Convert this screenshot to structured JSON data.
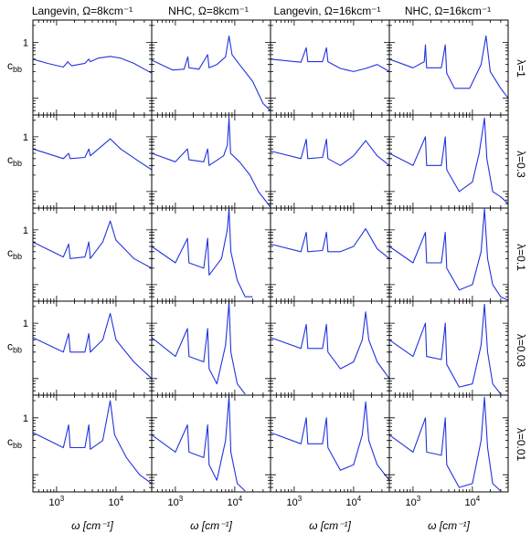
{
  "chart_data": {
    "type": "line",
    "layout": "5x4 grid of panels sharing axes",
    "x_scale": "log",
    "y_scale": "log",
    "xlim": [
      400,
      40000
    ],
    "ylim": [
      0.05,
      2.5
    ],
    "xlabel": "ω [cm⁻¹]",
    "ylabel": "c_bb",
    "ylabel_main": "c",
    "ylabel_sub": "bb",
    "x_ticks": [
      {
        "value": 1000,
        "base": "10",
        "exp": "3"
      },
      {
        "value": 10000,
        "base": "10",
        "exp": "4"
      }
    ],
    "y_ticks": [
      {
        "value": 1,
        "label": "1"
      }
    ],
    "column_titles": [
      "Langevin, Ω=8kcm⁻¹",
      "NHC, Ω=8kcm⁻¹",
      "Langevin, Ω=16kcm⁻¹",
      "NHC, Ω=16kcm⁻¹"
    ],
    "row_labels": [
      "λ=1",
      "λ=0.3",
      "λ=0.1",
      "λ=0.03",
      "λ=0.01"
    ],
    "line_color": "#2233dd",
    "panels": [
      {
        "row": 0,
        "col": 0,
        "points": [
          [
            400,
            0.5
          ],
          [
            700,
            0.42
          ],
          [
            1300,
            0.36
          ],
          [
            1550,
            0.45
          ],
          [
            1620,
            0.42
          ],
          [
            1800,
            0.38
          ],
          [
            3000,
            0.42
          ],
          [
            3500,
            0.5
          ],
          [
            3700,
            0.45
          ],
          [
            5000,
            0.52
          ],
          [
            8000,
            0.56
          ],
          [
            12000,
            0.52
          ],
          [
            20000,
            0.42
          ],
          [
            40000,
            0.28
          ]
        ]
      },
      {
        "row": 0,
        "col": 1,
        "points": [
          [
            400,
            0.48
          ],
          [
            900,
            0.32
          ],
          [
            1400,
            0.33
          ],
          [
            1620,
            0.55
          ],
          [
            1700,
            0.35
          ],
          [
            2500,
            0.33
          ],
          [
            3500,
            0.6
          ],
          [
            3700,
            0.35
          ],
          [
            5000,
            0.4
          ],
          [
            7000,
            0.55
          ],
          [
            8000,
            1.3
          ],
          [
            9000,
            0.6
          ],
          [
            12000,
            0.4
          ],
          [
            20000,
            0.2
          ],
          [
            30000,
            0.08
          ],
          [
            40000,
            0.06
          ]
        ]
      },
      {
        "row": 0,
        "col": 2,
        "points": [
          [
            400,
            0.5
          ],
          [
            1300,
            0.44
          ],
          [
            1600,
            0.8
          ],
          [
            1700,
            0.45
          ],
          [
            3000,
            0.45
          ],
          [
            3500,
            0.8
          ],
          [
            3700,
            0.45
          ],
          [
            6000,
            0.34
          ],
          [
            10000,
            0.3
          ],
          [
            16000,
            0.34
          ],
          [
            25000,
            0.4
          ],
          [
            40000,
            0.3
          ]
        ]
      },
      {
        "row": 0,
        "col": 3,
        "points": [
          [
            400,
            0.5
          ],
          [
            1000,
            0.35
          ],
          [
            1550,
            0.45
          ],
          [
            1620,
            0.9
          ],
          [
            1700,
            0.35
          ],
          [
            3000,
            0.35
          ],
          [
            3500,
            0.9
          ],
          [
            3700,
            0.28
          ],
          [
            5000,
            0.15
          ],
          [
            9000,
            0.15
          ],
          [
            14000,
            0.4
          ],
          [
            17000,
            1.3
          ],
          [
            20000,
            0.3
          ],
          [
            30000,
            0.15
          ],
          [
            40000,
            0.1
          ]
        ]
      },
      {
        "row": 1,
        "col": 0,
        "points": [
          [
            400,
            0.6
          ],
          [
            1300,
            0.4
          ],
          [
            1600,
            0.5
          ],
          [
            1700,
            0.4
          ],
          [
            3000,
            0.42
          ],
          [
            3500,
            0.6
          ],
          [
            3700,
            0.45
          ],
          [
            6000,
            0.7
          ],
          [
            8000,
            0.92
          ],
          [
            12000,
            0.6
          ],
          [
            25000,
            0.35
          ],
          [
            40000,
            0.25
          ]
        ]
      },
      {
        "row": 1,
        "col": 1,
        "points": [
          [
            400,
            0.5
          ],
          [
            1000,
            0.35
          ],
          [
            1600,
            0.6
          ],
          [
            1700,
            0.38
          ],
          [
            3000,
            0.35
          ],
          [
            3500,
            0.6
          ],
          [
            3700,
            0.3
          ],
          [
            6500,
            0.45
          ],
          [
            7500,
            0.7
          ],
          [
            8000,
            2.2
          ],
          [
            8500,
            0.5
          ],
          [
            12000,
            0.35
          ],
          [
            18000,
            0.2
          ],
          [
            25000,
            0.1
          ],
          [
            40000,
            0.05
          ]
        ]
      },
      {
        "row": 1,
        "col": 2,
        "points": [
          [
            400,
            0.55
          ],
          [
            1300,
            0.4
          ],
          [
            1600,
            0.9
          ],
          [
            1700,
            0.4
          ],
          [
            3000,
            0.42
          ],
          [
            3500,
            0.9
          ],
          [
            3700,
            0.4
          ],
          [
            6000,
            0.3
          ],
          [
            10000,
            0.45
          ],
          [
            16000,
            0.85
          ],
          [
            25000,
            0.45
          ],
          [
            40000,
            0.3
          ]
        ]
      },
      {
        "row": 1,
        "col": 3,
        "points": [
          [
            400,
            0.5
          ],
          [
            1000,
            0.3
          ],
          [
            1620,
            1.0
          ],
          [
            1700,
            0.3
          ],
          [
            3000,
            0.3
          ],
          [
            3500,
            1.0
          ],
          [
            3700,
            0.25
          ],
          [
            6000,
            0.1
          ],
          [
            10000,
            0.15
          ],
          [
            13000,
            0.5
          ],
          [
            16000,
            2.2
          ],
          [
            17500,
            0.4
          ],
          [
            22000,
            0.1
          ],
          [
            30000,
            0.08
          ],
          [
            40000,
            0.06
          ]
        ]
      },
      {
        "row": 2,
        "col": 0,
        "points": [
          [
            400,
            0.6
          ],
          [
            1300,
            0.32
          ],
          [
            1600,
            0.55
          ],
          [
            1700,
            0.3
          ],
          [
            3000,
            0.32
          ],
          [
            3500,
            0.6
          ],
          [
            3700,
            0.3
          ],
          [
            6000,
            0.6
          ],
          [
            8000,
            1.45
          ],
          [
            10000,
            0.65
          ],
          [
            20000,
            0.3
          ],
          [
            40000,
            0.2
          ]
        ]
      },
      {
        "row": 2,
        "col": 1,
        "points": [
          [
            400,
            0.5
          ],
          [
            1000,
            0.25
          ],
          [
            1600,
            0.7
          ],
          [
            1700,
            0.25
          ],
          [
            3000,
            0.2
          ],
          [
            3500,
            0.7
          ],
          [
            3700,
            0.15
          ],
          [
            6000,
            0.3
          ],
          [
            7500,
            1.0
          ],
          [
            8000,
            2.4
          ],
          [
            8600,
            0.4
          ],
          [
            11000,
            0.12
          ],
          [
            15000,
            0.06
          ],
          [
            20000,
            0.06
          ]
        ]
      },
      {
        "row": 2,
        "col": 2,
        "points": [
          [
            400,
            0.55
          ],
          [
            1300,
            0.4
          ],
          [
            1600,
            0.9
          ],
          [
            1700,
            0.4
          ],
          [
            3000,
            0.42
          ],
          [
            3500,
            0.9
          ],
          [
            3700,
            0.4
          ],
          [
            6000,
            0.4
          ],
          [
            10000,
            0.5
          ],
          [
            16000,
            1.05
          ],
          [
            25000,
            0.45
          ],
          [
            40000,
            0.3
          ]
        ]
      },
      {
        "row": 2,
        "col": 3,
        "points": [
          [
            400,
            0.5
          ],
          [
            1000,
            0.25
          ],
          [
            1620,
            0.9
          ],
          [
            1700,
            0.25
          ],
          [
            3000,
            0.25
          ],
          [
            3500,
            0.9
          ],
          [
            3700,
            0.2
          ],
          [
            6000,
            0.08
          ],
          [
            10000,
            0.1
          ],
          [
            14000,
            0.4
          ],
          [
            16000,
            2.4
          ],
          [
            18000,
            0.3
          ],
          [
            22000,
            0.1
          ],
          [
            30000,
            0.06
          ],
          [
            40000,
            0.05
          ]
        ]
      },
      {
        "row": 3,
        "col": 0,
        "points": [
          [
            400,
            0.55
          ],
          [
            1300,
            0.3
          ],
          [
            1600,
            0.65
          ],
          [
            1700,
            0.3
          ],
          [
            3000,
            0.3
          ],
          [
            3500,
            0.65
          ],
          [
            3700,
            0.3
          ],
          [
            6000,
            0.5
          ],
          [
            8000,
            1.5
          ],
          [
            10000,
            0.5
          ],
          [
            20000,
            0.2
          ],
          [
            40000,
            0.1
          ]
        ]
      },
      {
        "row": 3,
        "col": 1,
        "points": [
          [
            400,
            0.55
          ],
          [
            1000,
            0.25
          ],
          [
            1600,
            0.8
          ],
          [
            1700,
            0.25
          ],
          [
            3000,
            0.2
          ],
          [
            3500,
            0.8
          ],
          [
            3700,
            0.15
          ],
          [
            5000,
            0.08
          ],
          [
            7000,
            0.4
          ],
          [
            8000,
            2.4
          ],
          [
            8600,
            0.3
          ],
          [
            11000,
            0.08
          ],
          [
            15000,
            0.05
          ]
        ]
      },
      {
        "row": 3,
        "col": 2,
        "points": [
          [
            400,
            0.55
          ],
          [
            1300,
            0.35
          ],
          [
            1600,
            0.95
          ],
          [
            1700,
            0.35
          ],
          [
            3000,
            0.35
          ],
          [
            3500,
            0.95
          ],
          [
            3700,
            0.3
          ],
          [
            6000,
            0.15
          ],
          [
            10000,
            0.2
          ],
          [
            14000,
            0.5
          ],
          [
            16000,
            1.6
          ],
          [
            18000,
            0.5
          ],
          [
            25000,
            0.2
          ],
          [
            40000,
            0.1
          ]
        ]
      },
      {
        "row": 3,
        "col": 3,
        "points": [
          [
            400,
            0.5
          ],
          [
            1000,
            0.25
          ],
          [
            1620,
            1.0
          ],
          [
            1700,
            0.25
          ],
          [
            3000,
            0.22
          ],
          [
            3500,
            1.0
          ],
          [
            3700,
            0.18
          ],
          [
            6000,
            0.07
          ],
          [
            10000,
            0.08
          ],
          [
            14000,
            0.4
          ],
          [
            16000,
            2.2
          ],
          [
            18000,
            0.3
          ],
          [
            22000,
            0.08
          ],
          [
            30000,
            0.05
          ]
        ]
      },
      {
        "row": 4,
        "col": 0,
        "points": [
          [
            400,
            0.55
          ],
          [
            1300,
            0.3
          ],
          [
            1600,
            0.75
          ],
          [
            1700,
            0.3
          ],
          [
            3000,
            0.3
          ],
          [
            3500,
            0.75
          ],
          [
            3700,
            0.28
          ],
          [
            6000,
            0.4
          ],
          [
            8000,
            2.0
          ],
          [
            9500,
            0.5
          ],
          [
            15000,
            0.2
          ],
          [
            25000,
            0.1
          ],
          [
            40000,
            0.07
          ]
        ]
      },
      {
        "row": 4,
        "col": 1,
        "points": [
          [
            400,
            0.5
          ],
          [
            1000,
            0.25
          ],
          [
            1600,
            0.75
          ],
          [
            1700,
            0.25
          ],
          [
            3000,
            0.2
          ],
          [
            3500,
            0.75
          ],
          [
            3700,
            0.15
          ],
          [
            5000,
            0.08
          ],
          [
            7000,
            0.4
          ],
          [
            8000,
            2.4
          ],
          [
            8600,
            0.25
          ],
          [
            11000,
            0.07
          ],
          [
            15000,
            0.05
          ]
        ]
      },
      {
        "row": 4,
        "col": 2,
        "points": [
          [
            400,
            0.55
          ],
          [
            1300,
            0.35
          ],
          [
            1600,
            1.0
          ],
          [
            1700,
            0.35
          ],
          [
            3000,
            0.35
          ],
          [
            3500,
            1.0
          ],
          [
            3700,
            0.3
          ],
          [
            6000,
            0.12
          ],
          [
            10000,
            0.15
          ],
          [
            14000,
            0.5
          ],
          [
            16000,
            1.9
          ],
          [
            18000,
            0.4
          ],
          [
            25000,
            0.15
          ],
          [
            40000,
            0.08
          ]
        ]
      },
      {
        "row": 4,
        "col": 3,
        "points": [
          [
            400,
            0.5
          ],
          [
            1000,
            0.25
          ],
          [
            1620,
            1.0
          ],
          [
            1700,
            0.25
          ],
          [
            3000,
            0.22
          ],
          [
            3500,
            1.0
          ],
          [
            3700,
            0.15
          ],
          [
            6000,
            0.06
          ],
          [
            10000,
            0.07
          ],
          [
            14000,
            0.4
          ],
          [
            16000,
            2.3
          ],
          [
            18000,
            0.3
          ],
          [
            22000,
            0.07
          ],
          [
            30000,
            0.05
          ]
        ]
      }
    ]
  }
}
